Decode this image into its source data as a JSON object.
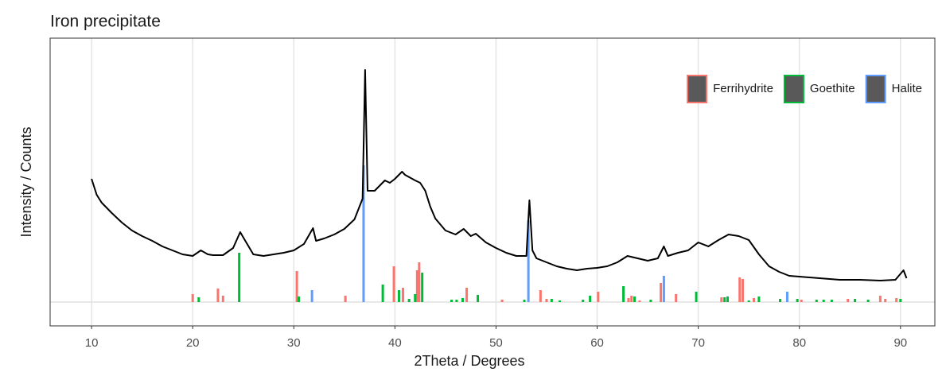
{
  "chart_data": {
    "type": "xrd",
    "title": "Iron precipitate",
    "x_label": "2Theta / Degrees",
    "y_label": "Intensity / Counts",
    "xlim": [
      5.9,
      93.4
    ],
    "ylim": [
      -30,
      332
    ],
    "xticks": [
      10,
      20,
      30,
      40,
      50,
      60,
      70,
      80,
      90
    ],
    "grid": true,
    "legend_position": "top-right",
    "line": {
      "color": "#000000",
      "x": [
        10,
        10.5,
        11,
        12,
        13,
        14,
        15,
        16,
        17,
        18,
        19,
        20,
        20.8,
        21.5,
        22,
        23,
        24,
        24.7,
        25.3,
        26,
        27,
        28,
        29,
        30,
        31,
        31.9,
        32.2,
        33,
        34,
        35,
        36,
        36.8,
        37.05,
        37.3,
        38,
        39,
        39.5,
        40,
        40.7,
        41,
        42,
        42.5,
        43,
        43.5,
        44,
        45,
        46,
        46.8,
        47.5,
        48,
        49,
        50,
        51,
        52,
        53,
        53.3,
        53.6,
        54,
        55,
        56,
        57,
        58,
        59,
        60,
        61,
        62,
        63,
        64,
        65,
        66,
        66.6,
        67,
        68,
        69,
        70,
        71,
        72,
        73,
        74,
        75,
        76,
        77,
        78,
        79,
        80,
        82,
        84,
        86,
        88,
        89.5,
        90.3,
        90.6
      ],
      "values": [
        155,
        135,
        125,
        112,
        100,
        90,
        83,
        77,
        70,
        65,
        60,
        58,
        65,
        60,
        59,
        59,
        68,
        88,
        75,
        60,
        58,
        60,
        62,
        65,
        73,
        93,
        77,
        80,
        85,
        92,
        104,
        130,
        292,
        140,
        140,
        153,
        150,
        155,
        164,
        160,
        153,
        150,
        140,
        120,
        105,
        90,
        85,
        92,
        83,
        86,
        75,
        68,
        62,
        58,
        58,
        128,
        65,
        55,
        50,
        45,
        42,
        40,
        42,
        43,
        45,
        50,
        58,
        55,
        52,
        55,
        70,
        58,
        62,
        65,
        75,
        70,
        78,
        85,
        83,
        78,
        60,
        45,
        38,
        33,
        32,
        30,
        28,
        28,
        27,
        28,
        40,
        30
      ]
    },
    "series": [
      {
        "name": "Ferrihydrite",
        "color": "#F8766D",
        "x": [
          20.0,
          22.5,
          23.0,
          30.3,
          35.1,
          39.9,
          40.8,
          42.2,
          42.4,
          47.1,
          50.6,
          54.4,
          55.0,
          60.1,
          63.1,
          63.4,
          64.2,
          66.3,
          67.8,
          72.3,
          74.1,
          74.4,
          75.5,
          80.2,
          84.8,
          88.0,
          88.5,
          89.6
        ],
        "values": [
          10,
          17,
          8,
          39,
          8,
          45,
          18,
          40,
          50,
          18,
          3,
          15,
          4,
          13,
          5,
          8,
          2,
          24,
          10,
          6,
          31,
          29,
          5,
          3,
          4,
          8,
          4,
          5
        ]
      },
      {
        "name": "Goethite",
        "color": "#00BA38",
        "x": [
          20.6,
          24.6,
          30.5,
          38.8,
          40.4,
          41.4,
          42.0,
          42.7,
          45.6,
          46.1,
          46.7,
          48.2,
          52.8,
          55.5,
          56.3,
          58.6,
          59.3,
          62.6,
          63.7,
          65.3,
          69.8,
          72.6,
          72.9,
          75.0,
          76.0,
          78.1,
          79.8,
          81.7,
          82.4,
          83.2,
          85.5,
          86.8,
          90.0
        ],
        "values": [
          6,
          62,
          7,
          22,
          15,
          4,
          10,
          37,
          3,
          3,
          5,
          9,
          3,
          4,
          2,
          3,
          8,
          20,
          7,
          3,
          13,
          6,
          7,
          2,
          7,
          4,
          4,
          3,
          3,
          3,
          4,
          3,
          4
        ]
      },
      {
        "name": "Halite",
        "color": "#619CFF",
        "x": [
          31.8,
          36.9,
          53.2,
          66.6,
          78.8
        ],
        "values": [
          15,
          172,
          103,
          33,
          13
        ]
      }
    ]
  }
}
